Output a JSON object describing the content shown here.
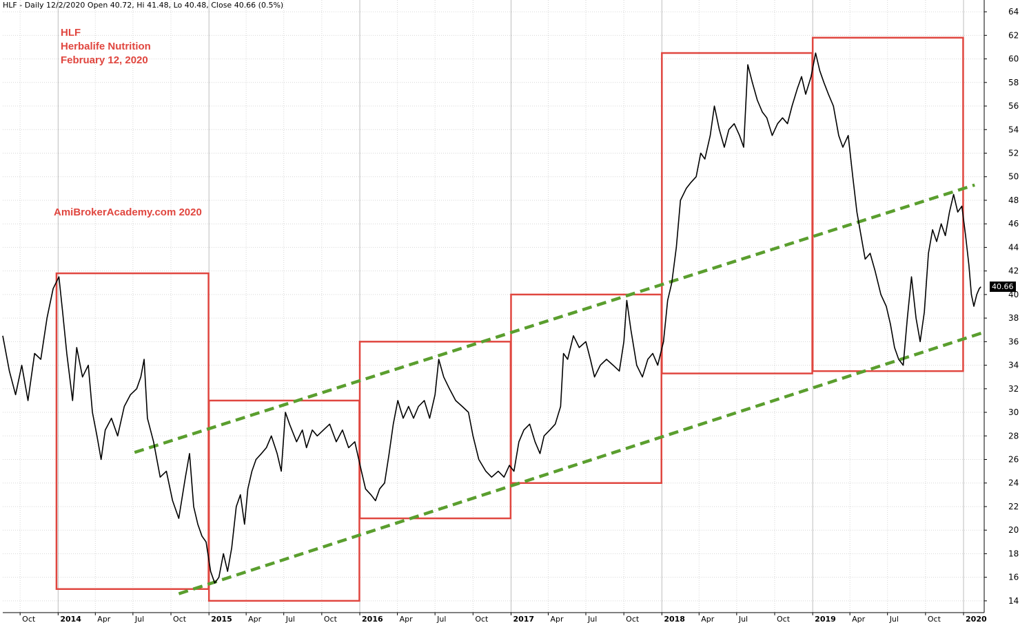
{
  "header": {
    "title": "HLF - Daily 12/2/2020 Open 40.72, Hi 41.48, Lo 40.48, Close 40.66 (0.5%)"
  },
  "annotations": {
    "ticker": "HLF",
    "company": "Herbalife Nutrition",
    "date": "February 12, 2020",
    "watermark": "AmiBrokerAcademy.com   2020"
  },
  "colors": {
    "price": "#000000",
    "boxes": "#e0463f",
    "trend": "#5a9e2e",
    "grid": "#d6d6d6"
  },
  "chart_data": {
    "type": "line",
    "title": "HLF - Daily",
    "ylim": [
      13,
      65
    ],
    "y_ticks": [
      14,
      16,
      18,
      20,
      22,
      24,
      26,
      28,
      30,
      32,
      34,
      36,
      38,
      40,
      42,
      44,
      46,
      48,
      50,
      52,
      54,
      56,
      58,
      60,
      62,
      64
    ],
    "xlim": [
      "2013-08-20",
      "2020-02-20"
    ],
    "x_ticks": [
      {
        "date": "2013-10-01",
        "label": "Oct"
      },
      {
        "date": "2014-01-01",
        "label": "2014",
        "year": true
      },
      {
        "date": "2014-04-01",
        "label": "Apr"
      },
      {
        "date": "2014-07-01",
        "label": "Jul"
      },
      {
        "date": "2014-10-01",
        "label": "Oct"
      },
      {
        "date": "2015-01-01",
        "label": "2015",
        "year": true
      },
      {
        "date": "2015-04-01",
        "label": "Apr"
      },
      {
        "date": "2015-07-01",
        "label": "Jul"
      },
      {
        "date": "2015-10-01",
        "label": "Oct"
      },
      {
        "date": "2016-01-01",
        "label": "2016",
        "year": true
      },
      {
        "date": "2016-04-01",
        "label": "Apr"
      },
      {
        "date": "2016-07-01",
        "label": "Jul"
      },
      {
        "date": "2016-10-01",
        "label": "Oct"
      },
      {
        "date": "2017-01-01",
        "label": "2017",
        "year": true
      },
      {
        "date": "2017-04-01",
        "label": "Apr"
      },
      {
        "date": "2017-07-01",
        "label": "Jul"
      },
      {
        "date": "2017-10-01",
        "label": "Oct"
      },
      {
        "date": "2018-01-01",
        "label": "2018",
        "year": true
      },
      {
        "date": "2018-04-01",
        "label": "Apr"
      },
      {
        "date": "2018-07-01",
        "label": "Jul"
      },
      {
        "date": "2018-10-01",
        "label": "Oct"
      },
      {
        "date": "2019-01-01",
        "label": "2019",
        "year": true
      },
      {
        "date": "2019-04-01",
        "label": "Apr"
      },
      {
        "date": "2019-07-01",
        "label": "Jul"
      },
      {
        "date": "2019-10-01",
        "label": "Oct"
      },
      {
        "date": "2020-01-01",
        "label": "2020",
        "year": true
      }
    ],
    "last_value": "40.66",
    "series": [
      {
        "type": "line",
        "points": [
          [
            "2013-08-20",
            36.5
          ],
          [
            "2013-09-05",
            33.5
          ],
          [
            "2013-09-20",
            31.5
          ],
          [
            "2013-10-05",
            34.0
          ],
          [
            "2013-10-20",
            31.0
          ],
          [
            "2013-11-05",
            35.0
          ],
          [
            "2013-11-20",
            34.5
          ],
          [
            "2013-12-05",
            38.0
          ],
          [
            "2013-12-20",
            40.5
          ],
          [
            "2014-01-03",
            41.5
          ],
          [
            "2014-01-12",
            38.5
          ],
          [
            "2014-01-22",
            35.0
          ],
          [
            "2014-02-05",
            31.0
          ],
          [
            "2014-02-15",
            35.5
          ],
          [
            "2014-03-01",
            33.0
          ],
          [
            "2014-03-15",
            34.0
          ],
          [
            "2014-03-25",
            30.0
          ],
          [
            "2014-04-05",
            28.0
          ],
          [
            "2014-04-15",
            26.0
          ],
          [
            "2014-04-25",
            28.5
          ],
          [
            "2014-05-10",
            29.5
          ],
          [
            "2014-05-25",
            28.0
          ],
          [
            "2014-06-10",
            30.5
          ],
          [
            "2014-06-25",
            31.5
          ],
          [
            "2014-07-10",
            32.0
          ],
          [
            "2014-07-20",
            33.0
          ],
          [
            "2014-07-28",
            34.5
          ],
          [
            "2014-08-05",
            29.5
          ],
          [
            "2014-08-20",
            27.5
          ],
          [
            "2014-09-05",
            24.5
          ],
          [
            "2014-09-20",
            25.0
          ],
          [
            "2014-10-05",
            22.5
          ],
          [
            "2014-10-20",
            21.0
          ],
          [
            "2014-11-05",
            24.5
          ],
          [
            "2014-11-15",
            26.5
          ],
          [
            "2014-11-25",
            22.0
          ],
          [
            "2014-12-05",
            20.5
          ],
          [
            "2014-12-15",
            19.5
          ],
          [
            "2014-12-25",
            19.0
          ],
          [
            "2015-01-05",
            16.5
          ],
          [
            "2015-01-15",
            15.5
          ],
          [
            "2015-01-25",
            16.0
          ],
          [
            "2015-02-05",
            18.0
          ],
          [
            "2015-02-15",
            16.5
          ],
          [
            "2015-02-25",
            18.5
          ],
          [
            "2015-03-08",
            22.0
          ],
          [
            "2015-03-18",
            23.0
          ],
          [
            "2015-03-28",
            20.5
          ],
          [
            "2015-04-05",
            23.5
          ],
          [
            "2015-04-15",
            25.0
          ],
          [
            "2015-04-25",
            26.0
          ],
          [
            "2015-05-08",
            26.5
          ],
          [
            "2015-05-20",
            27.0
          ],
          [
            "2015-06-01",
            28.0
          ],
          [
            "2015-06-15",
            26.5
          ],
          [
            "2015-06-25",
            25.0
          ],
          [
            "2015-07-05",
            30.0
          ],
          [
            "2015-07-15",
            29.0
          ],
          [
            "2015-08-01",
            27.5
          ],
          [
            "2015-08-15",
            28.5
          ],
          [
            "2015-08-25",
            27.0
          ],
          [
            "2015-09-08",
            28.5
          ],
          [
            "2015-09-20",
            28.0
          ],
          [
            "2015-10-05",
            28.5
          ],
          [
            "2015-10-20",
            29.0
          ],
          [
            "2015-11-05",
            27.5
          ],
          [
            "2015-11-20",
            28.5
          ],
          [
            "2015-12-05",
            27.0
          ],
          [
            "2015-12-20",
            27.5
          ],
          [
            "2016-01-05",
            25.0
          ],
          [
            "2016-01-15",
            23.5
          ],
          [
            "2016-01-28",
            23.0
          ],
          [
            "2016-02-08",
            22.5
          ],
          [
            "2016-02-18",
            23.5
          ],
          [
            "2016-03-01",
            24.0
          ],
          [
            "2016-03-12",
            26.5
          ],
          [
            "2016-03-22",
            29.0
          ],
          [
            "2016-04-02",
            31.0
          ],
          [
            "2016-04-15",
            29.5
          ],
          [
            "2016-04-28",
            30.5
          ],
          [
            "2016-05-10",
            29.5
          ],
          [
            "2016-05-22",
            30.5
          ],
          [
            "2016-06-05",
            31.0
          ],
          [
            "2016-06-18",
            29.5
          ],
          [
            "2016-07-01",
            31.5
          ],
          [
            "2016-07-10",
            34.5
          ],
          [
            "2016-07-22",
            33.0
          ],
          [
            "2016-08-05",
            32.0
          ],
          [
            "2016-08-20",
            31.0
          ],
          [
            "2016-09-05",
            30.5
          ],
          [
            "2016-09-20",
            30.0
          ],
          [
            "2016-10-01",
            28.0
          ],
          [
            "2016-10-15",
            26.0
          ],
          [
            "2016-11-01",
            25.0
          ],
          [
            "2016-11-15",
            24.5
          ],
          [
            "2016-12-01",
            25.0
          ],
          [
            "2016-12-15",
            24.5
          ],
          [
            "2016-12-28",
            25.5
          ],
          [
            "2017-01-08",
            25.0
          ],
          [
            "2017-01-20",
            27.5
          ],
          [
            "2017-02-01",
            28.5
          ],
          [
            "2017-02-15",
            29.0
          ],
          [
            "2017-02-28",
            27.5
          ],
          [
            "2017-03-12",
            26.5
          ],
          [
            "2017-03-22",
            28.0
          ],
          [
            "2017-04-05",
            28.5
          ],
          [
            "2017-04-18",
            29.0
          ],
          [
            "2017-05-01",
            30.5
          ],
          [
            "2017-05-08",
            35.0
          ],
          [
            "2017-05-18",
            34.5
          ],
          [
            "2017-06-01",
            36.5
          ],
          [
            "2017-06-15",
            35.5
          ],
          [
            "2017-07-01",
            36.0
          ],
          [
            "2017-07-12",
            34.5
          ],
          [
            "2017-07-22",
            33.0
          ],
          [
            "2017-08-05",
            34.0
          ],
          [
            "2017-08-20",
            34.5
          ],
          [
            "2017-09-05",
            34.0
          ],
          [
            "2017-09-20",
            33.5
          ],
          [
            "2017-10-01",
            36.0
          ],
          [
            "2017-10-08",
            39.5
          ],
          [
            "2017-10-18",
            37.0
          ],
          [
            "2017-11-01",
            34.0
          ],
          [
            "2017-11-15",
            33.0
          ],
          [
            "2017-11-28",
            34.5
          ],
          [
            "2017-12-10",
            35.0
          ],
          [
            "2017-12-22",
            34.0
          ],
          [
            "2018-01-05",
            36.0
          ],
          [
            "2018-01-15",
            39.5
          ],
          [
            "2018-01-25",
            41.0
          ],
          [
            "2018-02-05",
            44.0
          ],
          [
            "2018-02-15",
            48.0
          ],
          [
            "2018-03-01",
            49.0
          ],
          [
            "2018-03-12",
            49.5
          ],
          [
            "2018-03-25",
            50.0
          ],
          [
            "2018-04-05",
            52.0
          ],
          [
            "2018-04-15",
            51.5
          ],
          [
            "2018-04-28",
            53.5
          ],
          [
            "2018-05-08",
            56.0
          ],
          [
            "2018-05-20",
            54.0
          ],
          [
            "2018-06-01",
            52.5
          ],
          [
            "2018-06-12",
            54.0
          ],
          [
            "2018-06-25",
            54.5
          ],
          [
            "2018-07-08",
            53.5
          ],
          [
            "2018-07-18",
            52.5
          ],
          [
            "2018-07-28",
            59.5
          ],
          [
            "2018-08-08",
            58.0
          ],
          [
            "2018-08-20",
            56.5
          ],
          [
            "2018-09-01",
            55.5
          ],
          [
            "2018-09-12",
            55.0
          ],
          [
            "2018-09-25",
            53.5
          ],
          [
            "2018-10-08",
            54.5
          ],
          [
            "2018-10-20",
            55.0
          ],
          [
            "2018-11-01",
            54.5
          ],
          [
            "2018-11-12",
            56.0
          ],
          [
            "2018-11-25",
            57.5
          ],
          [
            "2018-12-05",
            58.5
          ],
          [
            "2018-12-15",
            57.0
          ],
          [
            "2018-12-28",
            58.5
          ],
          [
            "2019-01-08",
            60.5
          ],
          [
            "2019-01-18",
            59.0
          ],
          [
            "2019-01-28",
            58.0
          ],
          [
            "2019-02-08",
            57.0
          ],
          [
            "2019-02-20",
            56.0
          ],
          [
            "2019-03-05",
            53.5
          ],
          [
            "2019-03-15",
            52.5
          ],
          [
            "2019-03-28",
            53.5
          ],
          [
            "2019-04-08",
            50.0
          ],
          [
            "2019-04-18",
            47.0
          ],
          [
            "2019-04-28",
            45.0
          ],
          [
            "2019-05-08",
            43.0
          ],
          [
            "2019-05-20",
            43.5
          ],
          [
            "2019-06-01",
            42.0
          ],
          [
            "2019-06-15",
            40.0
          ],
          [
            "2019-06-28",
            39.0
          ],
          [
            "2019-07-08",
            37.5
          ],
          [
            "2019-07-18",
            35.5
          ],
          [
            "2019-07-28",
            34.5
          ],
          [
            "2019-08-08",
            34.0
          ],
          [
            "2019-08-18",
            38.0
          ],
          [
            "2019-08-28",
            41.5
          ],
          [
            "2019-09-08",
            38.0
          ],
          [
            "2019-09-18",
            36.0
          ],
          [
            "2019-09-28",
            38.5
          ],
          [
            "2019-10-08",
            43.5
          ],
          [
            "2019-10-18",
            45.5
          ],
          [
            "2019-10-28",
            44.5
          ],
          [
            "2019-11-08",
            46.0
          ],
          [
            "2019-11-18",
            45.0
          ],
          [
            "2019-11-28",
            47.0
          ],
          [
            "2019-12-08",
            48.5
          ],
          [
            "2019-12-18",
            47.0
          ],
          [
            "2019-12-28",
            47.5
          ],
          [
            "2020-01-06",
            45.0
          ],
          [
            "2020-01-14",
            42.5
          ],
          [
            "2020-01-20",
            40.0
          ],
          [
            "2020-01-26",
            39.0
          ],
          [
            "2020-02-02",
            40.0
          ],
          [
            "2020-02-08",
            40.5
          ],
          [
            "2020-02-12",
            40.66
          ]
        ]
      },
      {
        "type": "boxes",
        "items": [
          {
            "start": "2013-12-28",
            "end": "2014-12-31",
            "low": 15.0,
            "high": 41.8
          },
          {
            "start": "2015-01-01",
            "end": "2015-12-31",
            "low": 14.0,
            "high": 31.0
          },
          {
            "start": "2016-01-01",
            "end": "2016-12-31",
            "low": 21.0,
            "high": 36.0
          },
          {
            "start": "2017-01-01",
            "end": "2017-12-31",
            "low": 24.0,
            "high": 40.0
          },
          {
            "start": "2018-01-01",
            "end": "2018-12-31",
            "low": 33.3,
            "high": 60.5
          },
          {
            "start": "2019-01-01",
            "end": "2019-12-31",
            "low": 33.5,
            "high": 61.8
          }
        ]
      },
      {
        "type": "trendlines",
        "items": [
          {
            "start": [
              "2014-07-05",
              26.6
            ],
            "end": [
              "2020-01-28",
              49.3
            ]
          },
          {
            "start": [
              "2014-10-20",
              14.6
            ],
            "end": [
              "2020-02-20",
              36.8
            ]
          }
        ]
      }
    ]
  }
}
